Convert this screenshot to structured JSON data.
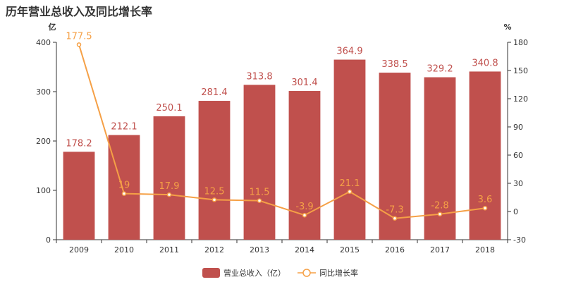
{
  "title": "历年营业总收入及同比增长率",
  "chart_data": {
    "type": "bar",
    "title": "历年营业总收入及同比增长率",
    "categories": [
      "2009",
      "2010",
      "2011",
      "2012",
      "2013",
      "2014",
      "2015",
      "2016",
      "2017",
      "2018"
    ],
    "y_left": {
      "unit": "亿",
      "ylim": [
        0,
        400
      ],
      "ticks": [
        0,
        100,
        200,
        300,
        400
      ]
    },
    "y_right": {
      "unit": "%",
      "ylim": [
        -30,
        180
      ],
      "ticks": [
        -30,
        0,
        30,
        60,
        90,
        120,
        150,
        180
      ]
    },
    "series": [
      {
        "name": "营业总收入（亿）",
        "type": "bar",
        "color": "#c0504d",
        "label_color": "#c0504d",
        "values": [
          178.2,
          212.1,
          250.1,
          281.4,
          313.8,
          301.4,
          364.9,
          338.5,
          329.2,
          340.8
        ],
        "labels": [
          "178.2",
          "212.1",
          "250.1",
          "281.4",
          "313.8",
          "301.4",
          "364.9",
          "338.5",
          "329.2",
          "340.8"
        ]
      },
      {
        "name": "同比增长率",
        "type": "line",
        "color": "#f5a046",
        "label_color": "#f5a046",
        "values": [
          177.5,
          19,
          17.9,
          12.5,
          11.5,
          -3.9,
          21.1,
          -7.3,
          -2.8,
          3.6
        ],
        "labels": [
          "177.5",
          "19",
          "17.9",
          "12.5",
          "11.5",
          "-3.9",
          "21.1",
          "-7.3",
          "-2.8",
          "3.6"
        ]
      }
    ],
    "grid": false,
    "legend_position": "bottom-center"
  }
}
